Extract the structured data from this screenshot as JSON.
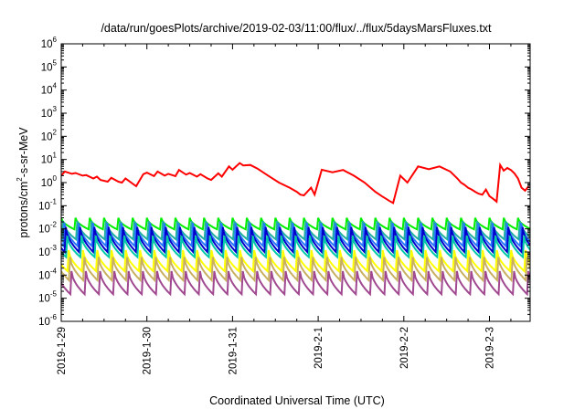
{
  "chart_data": {
    "type": "line",
    "title": "/data/run/goesPlots/archive/2019-02-03/11:00/flux/../flux/5daysMarsFluxes.txt",
    "xlabel": "Coordinated Universal Time (UTC)",
    "ylabel": "protons/cm2-s-sr-MeV",
    "yscale": "log",
    "ylim": [
      1e-06,
      1000000.0
    ],
    "x_range_days": [
      "2019-1-29",
      "2019-2-3"
    ],
    "x_ticks": [
      "2019-1-29",
      "2019-1-30",
      "2019-1-31",
      "2019-2-1",
      "2019-2-2",
      "2019-2-3"
    ],
    "y_ticks": [
      {
        "base": "10",
        "exp": "-6"
      },
      {
        "base": "10",
        "exp": "-5"
      },
      {
        "base": "10",
        "exp": "-4"
      },
      {
        "base": "10",
        "exp": "-3"
      },
      {
        "base": "10",
        "exp": "-2"
      },
      {
        "base": "10",
        "exp": "-1"
      },
      {
        "base": "10",
        "exp": "0"
      },
      {
        "base": "10",
        "exp": "1"
      },
      {
        "base": "10",
        "exp": "2"
      },
      {
        "base": "10",
        "exp": "3"
      },
      {
        "base": "10",
        "exp": "4"
      },
      {
        "base": "10",
        "exp": "5"
      },
      {
        "base": "10",
        "exp": "6"
      }
    ],
    "grid": false,
    "legend": "none",
    "red_series": {
      "color": "#ff0000",
      "x": [
        "2019-01-29 00:00",
        "2019-01-29 01:00",
        "2019-01-29 03:00",
        "2019-01-29 04:00",
        "2019-01-29 06:00",
        "2019-01-29 07:00",
        "2019-01-29 09:00",
        "2019-01-29 10:00",
        "2019-01-29 11:00",
        "2019-01-29 13:00",
        "2019-01-29 14:00",
        "2019-01-29 16:00",
        "2019-01-29 17:00",
        "2019-01-29 18:00",
        "2019-01-29 20:00",
        "2019-01-29 21:00",
        "2019-01-29 23:00",
        "2019-01-30 00:00",
        "2019-01-30 02:00",
        "2019-01-30 03:00",
        "2019-01-30 05:00",
        "2019-01-30 06:00",
        "2019-01-30 08:00",
        "2019-01-30 09:00",
        "2019-01-30 11:00",
        "2019-01-30 12:00",
        "2019-01-30 14:00",
        "2019-01-30 15:00",
        "2019-01-30 17:00",
        "2019-01-30 18:00",
        "2019-01-30 20:00",
        "2019-01-30 21:00",
        "2019-01-30 23:00",
        "2019-01-31 00:00",
        "2019-01-31 02:00",
        "2019-01-31 03:00",
        "2019-01-31 05:00",
        "2019-01-31 07:00",
        "2019-01-31 10:00",
        "2019-01-31 13:00",
        "2019-01-31 16:00",
        "2019-01-31 18:00",
        "2019-01-31 19:00",
        "2019-01-31 20:00",
        "2019-01-31 22:00",
        "2019-01-31 23:00",
        "2019-02-01 01:00",
        "2019-02-01 04:00",
        "2019-02-01 07:00",
        "2019-02-01 10:00",
        "2019-02-01 13:00",
        "2019-02-01 16:00",
        "2019-02-01 18:00",
        "2019-02-01 19:00",
        "2019-02-01 20:00",
        "2019-02-01 21:00",
        "2019-02-01 23:00",
        "2019-02-02 01:00",
        "2019-02-02 04:00",
        "2019-02-02 07:00",
        "2019-02-02 10:00",
        "2019-02-02 13:00",
        "2019-02-02 15:00",
        "2019-02-02 16:00",
        "2019-02-02 17:00",
        "2019-02-02 18:00",
        "2019-02-02 19:00",
        "2019-02-02 20:00",
        "2019-02-02 21:00",
        "2019-02-02 22:00",
        "2019-02-02 23:00",
        "2019-02-03 00:00",
        "2019-02-03 01:00",
        "2019-02-03 02:00",
        "2019-02-03 03:00",
        "2019-02-03 04:00",
        "2019-02-03 05:00",
        "2019-02-03 06:00",
        "2019-02-03 07:00",
        "2019-02-03 08:00",
        "2019-02-03 09:00",
        "2019-02-03 10:00",
        "2019-02-03 11:00"
      ],
      "y": [
        2.0,
        3.0,
        2.4,
        2.6,
        2.0,
        2.1,
        1.5,
        1.8,
        1.3,
        1.1,
        1.6,
        1.1,
        1.0,
        1.5,
        0.9,
        0.7,
        2.3,
        2.7,
        1.9,
        3.0,
        2.0,
        2.4,
        1.9,
        3.5,
        2.2,
        2.6,
        1.8,
        2.3,
        1.5,
        1.3,
        2.5,
        1.8,
        5.0,
        3.6,
        7.0,
        5.5,
        5.8,
        4.0,
        2.0,
        1.0,
        0.6,
        0.4,
        0.3,
        0.28,
        0.6,
        0.3,
        3.6,
        2.8,
        3.5,
        2.0,
        1.0,
        0.4,
        0.25,
        0.2,
        0.16,
        0.13,
        2.0,
        1.0,
        5.0,
        3.8,
        5.0,
        3.0,
        1.5,
        1.0,
        0.8,
        0.6,
        0.5,
        0.4,
        0.33,
        0.3,
        0.5,
        0.26,
        0.2,
        0.15,
        5.8,
        3.3,
        4.3,
        3.5,
        2.5,
        1.5,
        0.6,
        0.45,
        0.7
      ]
    },
    "cycle_series": [
      {
        "color": "#00ee00",
        "peak": 0.03,
        "trough": 0.0095,
        "phase": 0.0
      },
      {
        "color": "#20b0a0",
        "peak": 0.022,
        "trough": 0.0035,
        "phase": 0.12
      },
      {
        "color": "#2878ff",
        "peak": 0.018,
        "trough": 0.0018,
        "phase": 0.22
      },
      {
        "color": "#0000cc",
        "peak": 0.012,
        "trough": 0.001,
        "phase": 0.32
      },
      {
        "color": "#00c8a8",
        "peak": 0.005,
        "trough": 0.0006,
        "phase": 0.42
      },
      {
        "color": "#ffff00",
        "peak": 0.0012,
        "trough": 0.00015,
        "phase": 0.52
      },
      {
        "color": "#c8b060",
        "peak": 0.0006,
        "trough": 6e-05,
        "phase": 0.62
      },
      {
        "color": "#a04890",
        "peak": 0.00015,
        "trough": 1.5e-05,
        "phase": 0.72
      }
    ],
    "cycles_per_day": 6
  }
}
